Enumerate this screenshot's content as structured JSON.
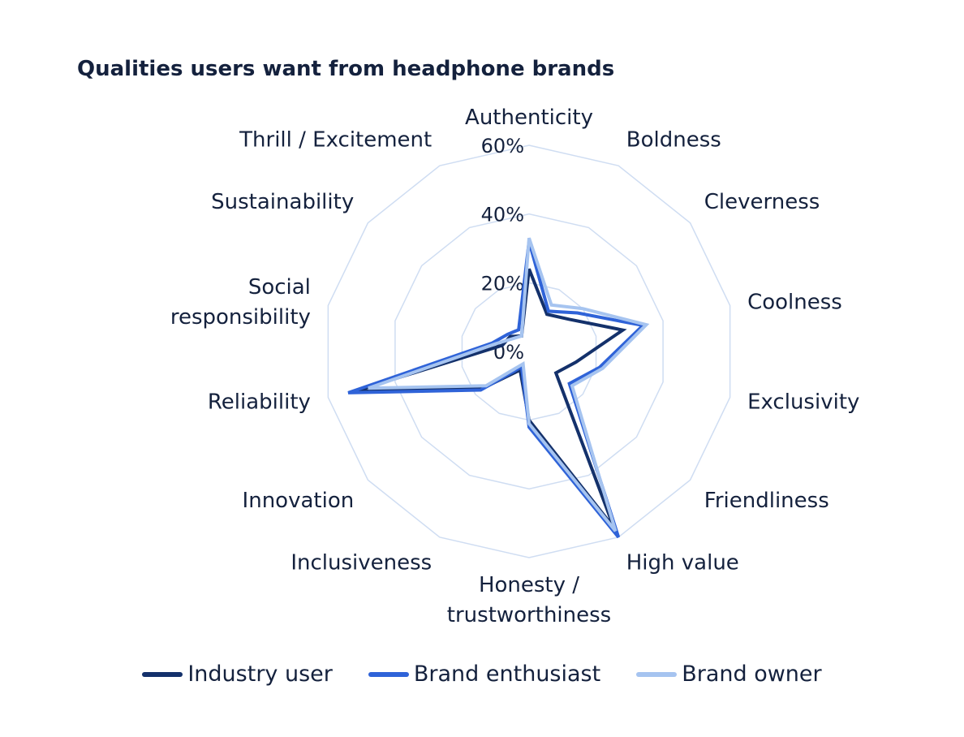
{
  "chart_data": {
    "type": "radar",
    "title": "Qualities users want from headphone brands",
    "categories": [
      "Authenticity",
      "Boldness",
      "Cleverness",
      "Coolness",
      "Exclusivity",
      "Friendliness",
      "High value",
      "Honesty / trustworthiness",
      "Inclusiveness",
      "Innovation",
      "Reliability",
      "Social responsibility",
      "Sustainability",
      "Thrill / Excitement"
    ],
    "label_lines": [
      [
        "Authenticity"
      ],
      [
        "Boldness"
      ],
      [
        "Cleverness"
      ],
      [
        "Coolness"
      ],
      [
        "Exclusivity"
      ],
      [
        "Friendliness"
      ],
      [
        "High value"
      ],
      [
        "Honesty /",
        "trustworthiness"
      ],
      [
        "Inclusiveness"
      ],
      [
        "Innovation"
      ],
      [
        "Reliability"
      ],
      [
        "Social",
        "responsibility"
      ],
      [
        "Sustainability"
      ],
      [
        "Thrill / Excitement"
      ]
    ],
    "r_ticks": [
      "0%",
      "20%",
      "40%",
      "60%"
    ],
    "r_range": [
      0,
      60
    ],
    "series": [
      {
        "name": "Industry user",
        "color": "#14316b",
        "values": [
          24,
          12,
          15,
          28,
          14,
          10,
          57,
          20,
          6,
          17,
          52,
          8,
          7,
          5
        ]
      },
      {
        "name": "Brand enthusiast",
        "color": "#2f63d8",
        "values": [
          32,
          13,
          18,
          34,
          21,
          15,
          60,
          22,
          5,
          18,
          54,
          11,
          8,
          7
        ]
      },
      {
        "name": "Brand owner",
        "color": "#a6c4f0",
        "values": [
          33,
          15,
          20,
          35,
          22,
          16,
          58,
          21,
          4,
          16,
          48,
          10,
          6,
          5
        ]
      }
    ],
    "grid_color": "#cfddf2",
    "legend_position": "bottom"
  }
}
